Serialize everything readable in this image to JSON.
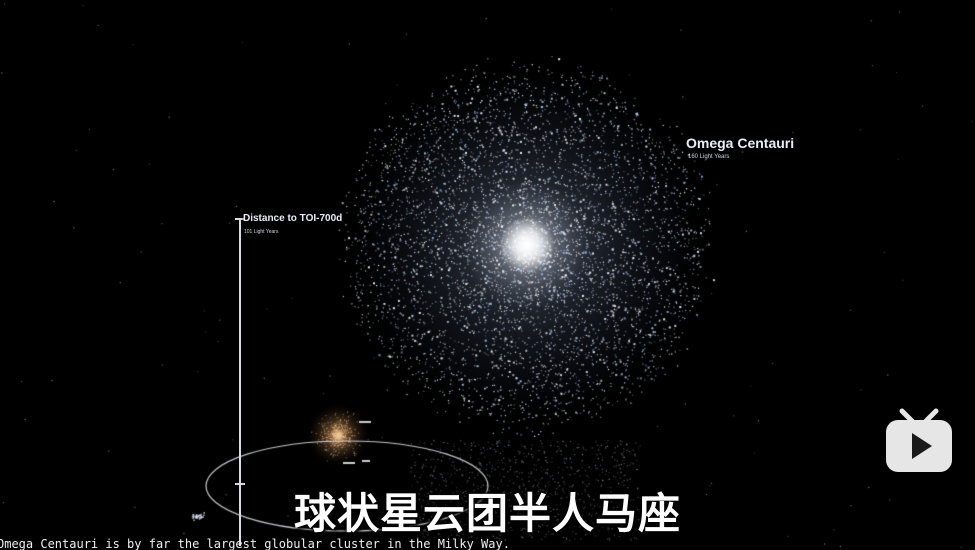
{
  "labels": {
    "omega_title": "Omega Centauri",
    "omega_size": "160 Light Years",
    "distance_title": "Distance to TOI-700d",
    "distance_value": "101 Light Years"
  },
  "subtitles": {
    "chinese": "球状星云团半人马座",
    "english": "Omega Centauri is by far the largest globular cluster in the Milky Way."
  },
  "icons": {
    "logo": "bilibili-tv-icon"
  },
  "colors": {
    "background": "#000000",
    "star": "#dfe7f5",
    "star_blue": "#9fb6dc",
    "small_cluster": "#f2c48a",
    "label": "#e9eef6",
    "logo": "#e6e6e6"
  }
}
